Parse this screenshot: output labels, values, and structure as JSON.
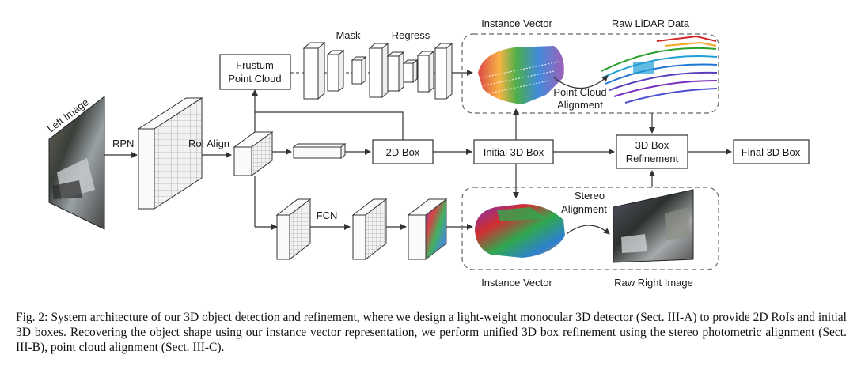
{
  "labels": {
    "left_image": "Left Image",
    "rpn": "RPN",
    "roi_align": "RoI Align",
    "frustum_line1": "Frustum",
    "frustum_line2": "Point Cloud",
    "mask": "Mask",
    "regress": "Regress",
    "box_2d": "2D Box",
    "initial_3d_box": "Initial 3D Box",
    "refine_line1": "3D Box",
    "refine_line2": "Refinement",
    "final_3d_box": "Final 3D Box",
    "fcn": "FCN",
    "instance_vector_top": "Instance Vector",
    "raw_lidar": "Raw LiDAR Data",
    "pc_align_line1": "Point Cloud",
    "pc_align_line2": "Alignment",
    "stereo_line1": "Stereo",
    "stereo_line2": "Alignment",
    "instance_vector_bottom": "Instance Vector",
    "raw_right_image": "Raw Right Image"
  },
  "caption": "Fig. 2: System architecture of our 3D object detection and refinement, where we design a light-weight monocular 3D detector (Sect. III-A) to provide 2D RoIs and initial 3D boxes. Recovering the object shape using our instance vector representation, we perform unified 3D box refinement using the stereo photometric alignment (Sect. III-B), point cloud alignment (Sect. III-C).",
  "colors": {
    "line": "#333333",
    "grid_face": "#f4f4f4",
    "dashed_frame": "#666666"
  }
}
